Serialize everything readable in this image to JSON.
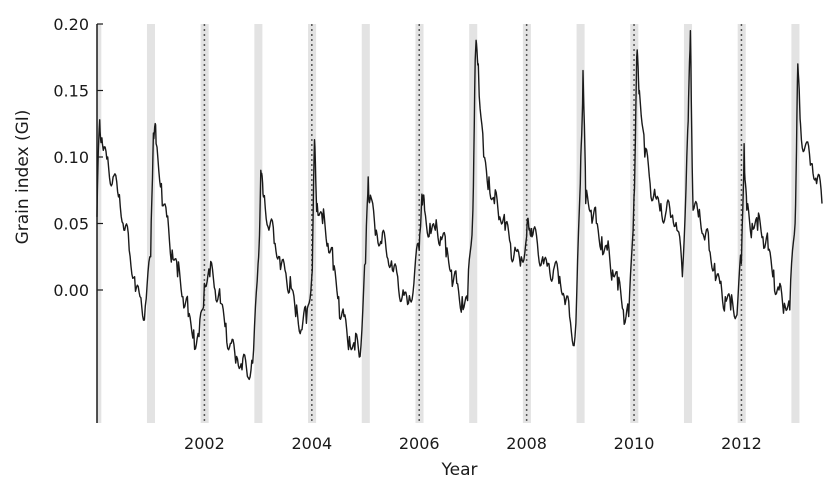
{
  "chart_data": {
    "type": "line",
    "title": "",
    "xlabel": "Year",
    "ylabel": "Grain index (GI)",
    "xlim": [
      2000.0,
      2013.5
    ],
    "ylim": [
      -0.1,
      0.2
    ],
    "x_ticks": [
      2002,
      2004,
      2006,
      2008,
      2010,
      2012
    ],
    "x_tick_labels": [
      "2002",
      "2004",
      "2006",
      "2008",
      "2010",
      "2012"
    ],
    "y_ticks": [
      0.0,
      0.05,
      0.1,
      0.15,
      0.2
    ],
    "y_tick_labels": [
      "0.00",
      "0.05",
      "0.10",
      "0.15",
      "0.20"
    ],
    "grid": false,
    "legend": "none",
    "line_color": "#1a1a1a",
    "shaded_band_color": "#e3e3e3",
    "dotted_line_color": "#555555",
    "shaded_bands": [
      [
        2000.93,
        2001.08
      ],
      [
        2002.93,
        2003.08
      ],
      [
        2004.93,
        2005.08
      ],
      [
        2006.93,
        2007.08
      ],
      [
        2008.93,
        2009.08
      ],
      [
        2010.93,
        2011.08
      ],
      [
        2012.93,
        2013.08
      ],
      [
        1999.93,
        2000.08
      ],
      [
        2001.93,
        2002.08
      ],
      [
        2003.93,
        2004.08
      ],
      [
        2005.93,
        2006.08
      ],
      [
        2007.93,
        2008.08
      ],
      [
        2009.93,
        2010.08
      ],
      [
        2011.93,
        2012.08
      ]
    ],
    "dotted_lines": [
      2002,
      2004,
      2006,
      2008,
      2010,
      2012
    ],
    "series": [
      {
        "x": [
          2000.0,
          2000.05,
          2000.1,
          2000.2,
          2000.3,
          2000.4,
          2000.5,
          2000.6,
          2000.7,
          2000.8,
          2000.9,
          2001.0,
          2001.05,
          2001.1,
          2001.2,
          2001.3,
          2001.4,
          2001.5,
          2001.6,
          2001.7,
          2001.8,
          2001.9,
          2002.0,
          2002.1,
          2002.2,
          2002.3,
          2002.4,
          2002.5,
          2002.6,
          2002.7,
          2002.8,
          2002.9,
          2003.0,
          2003.05,
          2003.1,
          2003.2,
          2003.3,
          2003.4,
          2003.5,
          2003.6,
          2003.7,
          2003.8,
          2003.9,
          2004.0,
          2004.05,
          2004.1,
          2004.2,
          2004.3,
          2004.4,
          2004.5,
          2004.6,
          2004.7,
          2004.8,
          2004.9,
          2005.0,
          2005.05,
          2005.1,
          2005.2,
          2005.3,
          2005.4,
          2005.5,
          2005.6,
          2005.7,
          2005.8,
          2005.9,
          2006.0,
          2006.05,
          2006.1,
          2006.2,
          2006.3,
          2006.4,
          2006.5,
          2006.6,
          2006.7,
          2006.8,
          2006.9,
          2007.0,
          2007.05,
          2007.1,
          2007.2,
          2007.3,
          2007.4,
          2007.5,
          2007.6,
          2007.7,
          2007.8,
          2007.9,
          2008.0,
          2008.05,
          2008.1,
          2008.2,
          2008.3,
          2008.4,
          2008.5,
          2008.6,
          2008.7,
          2008.8,
          2008.9,
          2009.0,
          2009.05,
          2009.1,
          2009.2,
          2009.3,
          2009.4,
          2009.5,
          2009.6,
          2009.7,
          2009.8,
          2009.9,
          2010.0,
          2010.05,
          2010.1,
          2010.2,
          2010.3,
          2010.4,
          2010.5,
          2010.6,
          2010.7,
          2010.8,
          2010.9,
          2011.0,
          2011.05,
          2011.1,
          2011.2,
          2011.3,
          2011.4,
          2011.5,
          2011.6,
          2011.7,
          2011.8,
          2011.9,
          2012.0,
          2012.05,
          2012.1,
          2012.2,
          2012.3,
          2012.4,
          2012.5,
          2012.6,
          2012.7,
          2012.8,
          2012.9,
          2013.0,
          2013.05,
          2013.1,
          2013.2,
          2013.3,
          2013.4,
          2013.5
        ],
        "y": [
          0.055,
          0.128,
          0.11,
          0.1,
          0.085,
          0.07,
          0.045,
          0.03,
          0.01,
          -0.005,
          -0.012,
          0.025,
          0.118,
          0.11,
          0.08,
          0.055,
          0.03,
          0.01,
          -0.005,
          -0.02,
          -0.03,
          -0.035,
          0.005,
          0.01,
          0.0,
          -0.01,
          -0.025,
          -0.04,
          -0.05,
          -0.06,
          -0.065,
          -0.055,
          0.02,
          0.09,
          0.07,
          0.045,
          0.035,
          0.025,
          0.015,
          0.01,
          -0.02,
          -0.03,
          -0.025,
          0.01,
          0.113,
          0.065,
          0.05,
          0.035,
          0.015,
          -0.005,
          -0.02,
          -0.035,
          -0.045,
          -0.05,
          0.02,
          0.085,
          0.07,
          0.045,
          0.035,
          0.025,
          0.015,
          0.01,
          0.0,
          -0.01,
          0.005,
          0.03,
          0.072,
          0.06,
          0.05,
          0.045,
          0.04,
          0.025,
          0.015,
          0.005,
          -0.005,
          -0.008,
          0.06,
          0.18,
          0.17,
          0.1,
          0.085,
          0.065,
          0.055,
          0.045,
          0.035,
          0.03,
          0.025,
          0.04,
          0.045,
          0.04,
          0.035,
          0.025,
          0.02,
          0.015,
          0.005,
          -0.005,
          -0.02,
          -0.035,
          0.08,
          0.165,
          0.065,
          0.06,
          0.05,
          0.04,
          0.03,
          0.015,
          0.0,
          -0.015,
          -0.02,
          0.07,
          0.175,
          0.15,
          0.1,
          0.08,
          0.07,
          0.065,
          0.06,
          0.055,
          0.045,
          0.01,
          0.12,
          0.195,
          0.06,
          0.055,
          0.04,
          0.03,
          0.02,
          0.005,
          -0.005,
          -0.015,
          -0.02,
          0.02,
          0.11,
          0.06,
          0.05,
          0.045,
          0.04,
          0.03,
          0.015,
          0.0,
          -0.01,
          -0.015,
          0.05,
          0.17,
          0.125,
          0.11,
          0.095,
          0.08,
          0.065
        ]
      }
    ]
  }
}
